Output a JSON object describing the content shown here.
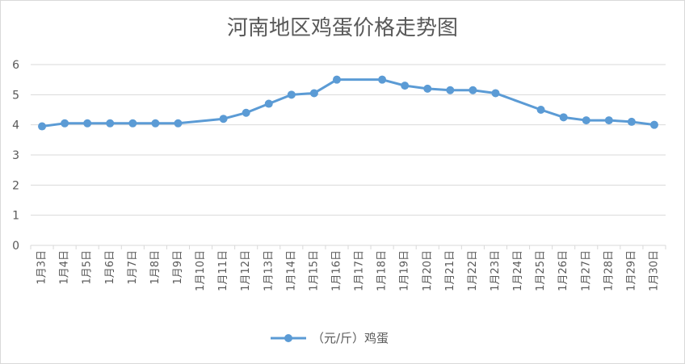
{
  "chart_data": {
    "type": "line",
    "title": "河南地区鸡蛋价格走势图",
    "categories": [
      "1月3日",
      "1月4日",
      "1月5日",
      "1月6日",
      "1月7日",
      "1月8日",
      "1月9日",
      "1月10日",
      "1月11日",
      "1月12日",
      "1月13日",
      "1月14日",
      "1月15日",
      "1月16日",
      "1月17日",
      "1月18日",
      "1月19日",
      "1月20日",
      "1月21日",
      "1月22日",
      "1月23日",
      "1月24日",
      "1月25日",
      "1月26日",
      "1月27日",
      "1月28日",
      "1月29日",
      "1月30日"
    ],
    "series": [
      {
        "name": "（元/斤）鸡蛋",
        "color": "#5b9bd5",
        "values": [
          3.95,
          4.05,
          4.05,
          4.05,
          4.05,
          4.05,
          4.05,
          null,
          4.2,
          4.4,
          4.7,
          5.0,
          5.05,
          5.5,
          null,
          5.5,
          5.3,
          5.2,
          5.15,
          5.15,
          5.05,
          null,
          4.5,
          4.25,
          4.15,
          4.15,
          4.1,
          4.0
        ]
      }
    ],
    "y_ticks": [
      "0",
      "1",
      "2",
      "3",
      "4",
      "5",
      "6"
    ],
    "ylim": [
      0,
      6
    ],
    "grid": true,
    "legend_position": "bottom"
  }
}
